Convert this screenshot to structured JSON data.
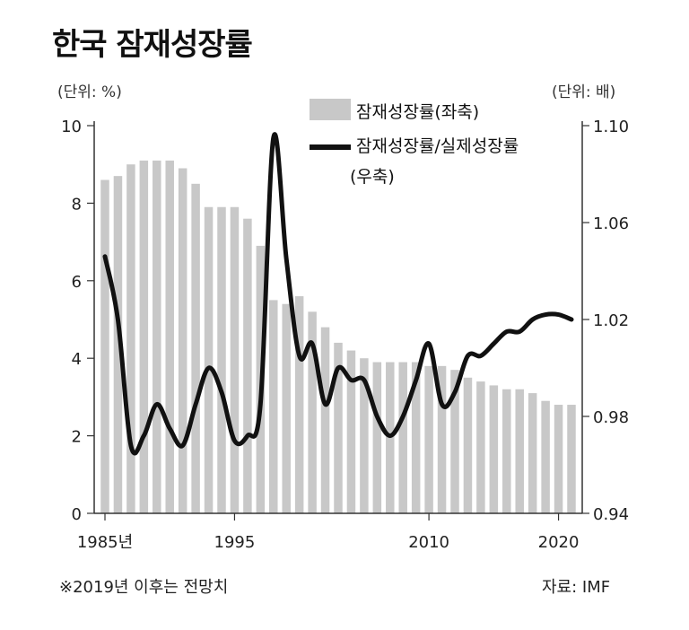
{
  "chart_data": {
    "type": "bar",
    "title": "한국 잠재성장률",
    "unit_left": "(단위: %)",
    "unit_right": "(단위: 배)",
    "legend": {
      "bars": "잠재성장률(좌축)",
      "line_1": "잠재성장률/실제성장률",
      "line_2": "(우축)"
    },
    "x_tick_labels": [
      {
        "year": 1985,
        "label": "1985년"
      },
      {
        "year": 1995,
        "label": "1995"
      },
      {
        "year": 2010,
        "label": "2010"
      },
      {
        "year": 2020,
        "label": "2020"
      }
    ],
    "y_left": {
      "range": [
        0,
        10
      ],
      "ticks": [
        0,
        2,
        4,
        6,
        8,
        10
      ]
    },
    "y_right": {
      "range": [
        0.94,
        1.1
      ],
      "ticks": [
        "0.94",
        "0.98",
        "1.02",
        "1.06",
        "1.10"
      ]
    },
    "years": [
      1985,
      1986,
      1987,
      1988,
      1989,
      1990,
      1991,
      1992,
      1993,
      1994,
      1995,
      1996,
      1997,
      1998,
      1999,
      2000,
      2001,
      2002,
      2003,
      2004,
      2005,
      2006,
      2007,
      2008,
      2009,
      2010,
      2011,
      2012,
      2013,
      2014,
      2015,
      2016,
      2017,
      2018,
      2019,
      2020,
      2021
    ],
    "series": [
      {
        "name": "잠재성장률(좌축)",
        "axis": "left",
        "values": [
          8.6,
          8.7,
          9.0,
          9.1,
          9.1,
          9.1,
          8.9,
          8.5,
          7.9,
          7.9,
          7.9,
          7.6,
          6.9,
          5.5,
          5.4,
          5.6,
          5.2,
          4.8,
          4.4,
          4.2,
          4.0,
          3.9,
          3.9,
          3.9,
          3.9,
          3.8,
          3.8,
          3.7,
          3.5,
          3.4,
          3.3,
          3.2,
          3.2,
          3.1,
          2.9,
          2.8,
          2.8
        ]
      },
      {
        "name": "잠재성장률/실제성장률(우축)",
        "axis": "right",
        "values": [
          1.046,
          1.02,
          0.968,
          0.972,
          0.985,
          0.975,
          0.968,
          0.985,
          1.0,
          0.99,
          0.97,
          0.972,
          0.985,
          1.095,
          1.045,
          1.005,
          1.01,
          0.985,
          1.0,
          0.995,
          0.995,
          0.98,
          0.972,
          0.98,
          0.995,
          1.01,
          0.985,
          0.99,
          1.005,
          1.005,
          1.01,
          1.015,
          1.015,
          1.02,
          1.022,
          1.022,
          1.02
        ]
      }
    ],
    "colors": {
      "bars": "#c8c8c8",
      "line": "#111111",
      "axis": "#333333"
    }
  },
  "note": "※2019년 이후는 전망치",
  "source": "자료: IMF"
}
